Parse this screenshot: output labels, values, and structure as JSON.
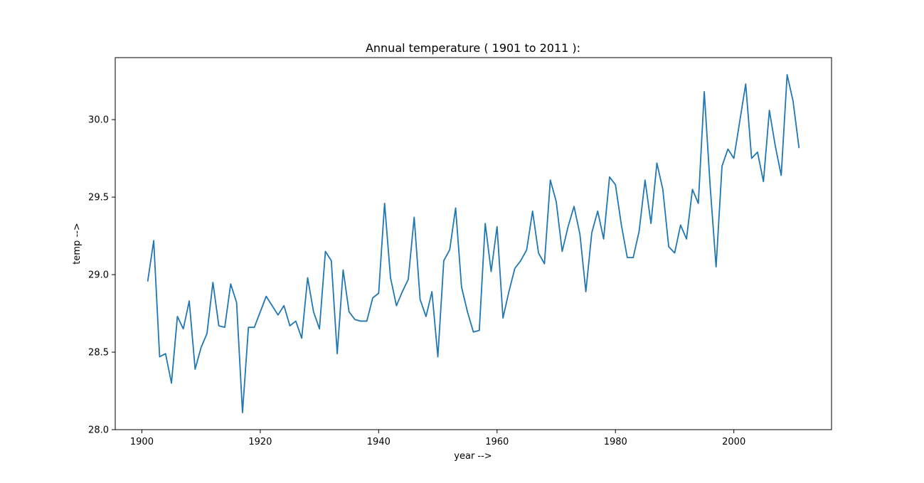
{
  "chart_data": {
    "type": "line",
    "title": "Annual temperature ( 1901 to 2011 ):",
    "xlabel": "year -->",
    "ylabel": "temp -->",
    "xlim": [
      1895.5,
      2016.5
    ],
    "ylim": [
      28.0,
      30.4
    ],
    "x_ticks": [
      1900,
      1920,
      1940,
      1960,
      1980,
      2000
    ],
    "y_ticks": [
      28.0,
      28.5,
      29.0,
      29.5,
      30.0
    ],
    "y_tick_labels": [
      "28.0",
      "28.5",
      "29.0",
      "29.5",
      "30.0"
    ],
    "grid": false,
    "legend": "none",
    "colors": {
      "line": "#1f77b4",
      "axes": "#000000"
    },
    "series": [
      {
        "x": [
          1901,
          1902,
          1903,
          1904,
          1905,
          1906,
          1907,
          1908,
          1909,
          1910,
          1911,
          1912,
          1913,
          1914,
          1915,
          1916,
          1917,
          1918,
          1919,
          1920,
          1921,
          1922,
          1923,
          1924,
          1925,
          1926,
          1927,
          1928,
          1929,
          1930,
          1931,
          1932,
          1933,
          1934,
          1935,
          1936,
          1937,
          1938,
          1939,
          1940,
          1941,
          1942,
          1943,
          1944,
          1945,
          1946,
          1947,
          1948,
          1949,
          1950,
          1951,
          1952,
          1953,
          1954,
          1955,
          1956,
          1957,
          1958,
          1959,
          1960,
          1961,
          1962,
          1963,
          1964,
          1965,
          1966,
          1967,
          1968,
          1969,
          1970,
          1971,
          1972,
          1973,
          1974,
          1975,
          1976,
          1977,
          1978,
          1979,
          1980,
          1981,
          1982,
          1983,
          1984,
          1985,
          1986,
          1987,
          1988,
          1989,
          1990,
          1991,
          1992,
          1993,
          1994,
          1995,
          1996,
          1997,
          1998,
          1999,
          2000,
          2001,
          2002,
          2003,
          2004,
          2005,
          2006,
          2007,
          2008,
          2009,
          2010,
          2011
        ],
        "values": [
          28.96,
          29.22,
          28.47,
          28.49,
          28.3,
          28.73,
          28.65,
          28.83,
          28.39,
          28.53,
          28.62,
          28.95,
          28.67,
          28.66,
          28.94,
          28.82,
          28.11,
          28.66,
          28.66,
          28.76,
          28.86,
          28.8,
          28.74,
          28.8,
          28.67,
          28.7,
          28.59,
          28.98,
          28.76,
          28.65,
          29.15,
          29.09,
          28.49,
          29.03,
          28.76,
          28.71,
          28.7,
          28.7,
          28.85,
          28.88,
          29.46,
          28.98,
          28.8,
          28.89,
          28.97,
          29.37,
          28.84,
          28.73,
          28.89,
          28.47,
          29.09,
          29.16,
          29.43,
          28.92,
          28.76,
          28.63,
          28.64,
          29.33,
          29.02,
          29.31,
          28.72,
          28.89,
          29.04,
          29.09,
          29.16,
          29.41,
          29.14,
          29.07,
          29.61,
          29.47,
          29.15,
          29.31,
          29.44,
          29.26,
          28.89,
          29.27,
          29.41,
          29.23,
          29.63,
          29.58,
          29.32,
          29.11,
          29.11,
          29.28,
          29.61,
          29.33,
          29.72,
          29.55,
          29.18,
          29.14,
          29.32,
          29.23,
          29.55,
          29.46,
          30.18,
          29.57,
          29.05,
          29.7,
          29.81,
          29.75,
          29.99,
          30.23,
          29.75,
          29.79,
          29.6,
          30.06,
          29.83,
          29.64,
          30.29,
          30.12,
          29.82
        ]
      }
    ]
  }
}
